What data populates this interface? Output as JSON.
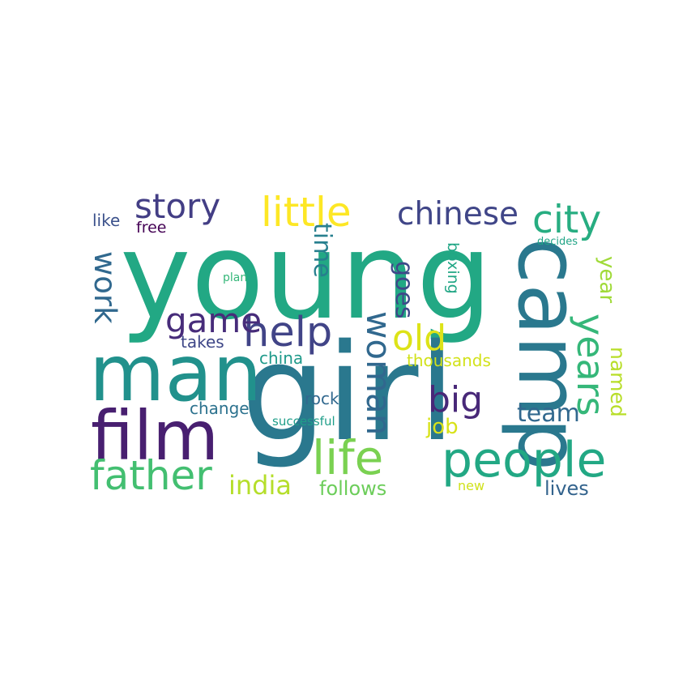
{
  "words": [
    {
      "text": "young",
      "color": "#22a884",
      "vertical": false
    },
    {
      "text": "girl",
      "color": "#2a788e",
      "vertical": false
    },
    {
      "text": "man",
      "color": "#21918c",
      "vertical": false
    },
    {
      "text": "camp",
      "color": "#2a788e",
      "vertical": true
    },
    {
      "text": "film",
      "color": "#481f70",
      "vertical": false
    },
    {
      "text": "people",
      "color": "#22a884",
      "vertical": false
    },
    {
      "text": "life",
      "color": "#7ad151",
      "vertical": false
    },
    {
      "text": "father",
      "color": "#43bf71",
      "vertical": false
    },
    {
      "text": "help",
      "color": "#414487",
      "vertical": false
    },
    {
      "text": "little",
      "color": "#fde725",
      "vertical": false
    },
    {
      "text": "chinese",
      "color": "#404688",
      "vertical": false
    },
    {
      "text": "city",
      "color": "#27ad81",
      "vertical": false
    },
    {
      "text": "story",
      "color": "#433e85",
      "vertical": false
    },
    {
      "text": "years",
      "color": "#35b779",
      "vertical": true
    },
    {
      "text": "woman",
      "color": "#31688e",
      "vertical": true
    },
    {
      "text": "game",
      "color": "#472c7a",
      "vertical": false
    },
    {
      "text": "big",
      "color": "#482878",
      "vertical": false
    },
    {
      "text": "old",
      "color": "#dde318",
      "vertical": false
    },
    {
      "text": "work",
      "color": "#30688e",
      "vertical": true
    },
    {
      "text": "india",
      "color": "#b5de2b",
      "vertical": false
    },
    {
      "text": "team",
      "color": "#31688e",
      "vertical": false
    },
    {
      "text": "time",
      "color": "#277f8e",
      "vertical": true
    },
    {
      "text": "goes",
      "color": "#3e4989",
      "vertical": true
    },
    {
      "text": "year",
      "color": "#a0da39",
      "vertical": true
    },
    {
      "text": "named",
      "color": "#b8de29",
      "vertical": true
    },
    {
      "text": "follows",
      "color": "#6ccd5a",
      "vertical": false
    },
    {
      "text": "job",
      "color": "#d8e219",
      "vertical": false
    },
    {
      "text": "lives",
      "color": "#33638d",
      "vertical": false
    },
    {
      "text": "thousands",
      "color": "#d2e21b",
      "vertical": false
    },
    {
      "text": "takes",
      "color": "#3f4788",
      "vertical": false
    },
    {
      "text": "china",
      "color": "#1f9a8a",
      "vertical": false
    },
    {
      "text": "like",
      "color": "#3b518b",
      "vertical": false
    },
    {
      "text": "free",
      "color": "#440154",
      "vertical": false
    },
    {
      "text": "change",
      "color": "#2c728e",
      "vertical": false
    },
    {
      "text": "rock",
      "color": "#31688e",
      "vertical": false
    },
    {
      "text": "boxing",
      "color": "#21a685",
      "vertical": true
    },
    {
      "text": "successful",
      "color": "#1f9e89",
      "vertical": false
    },
    {
      "text": "new",
      "color": "#d0e11c",
      "vertical": false
    },
    {
      "text": "plan",
      "color": "#35b779",
      "vertical": false
    },
    {
      "text": "decides",
      "color": "#20a486",
      "vertical": false
    }
  ]
}
